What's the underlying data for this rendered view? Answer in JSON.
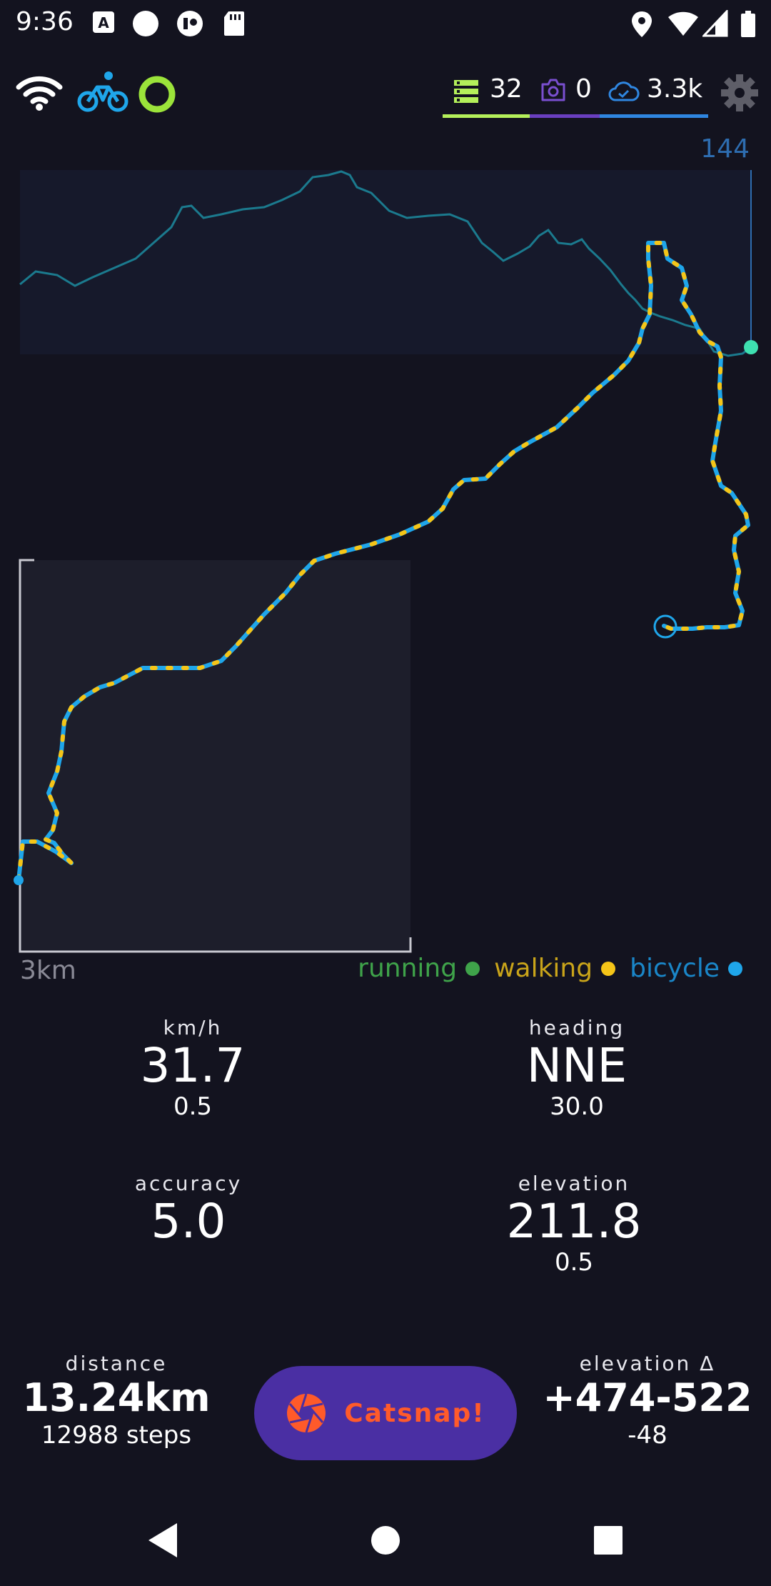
{
  "status_bar": {
    "time": "9:36",
    "icons_left": [
      "accessibility-a-icon",
      "circle-icon",
      "shield-icon",
      "sd-card-icon"
    ],
    "icons_right": [
      "location-icon",
      "wifi-icon",
      "signal-icon",
      "battery-icon"
    ]
  },
  "header": {
    "icons_left": [
      "wifi-icon",
      "bicycle-icon",
      "status-ring-icon"
    ],
    "counters": [
      {
        "icon": "database-stack-icon",
        "value": "32",
        "color": "#b4f05a"
      },
      {
        "icon": "camera-icon",
        "value": "0",
        "color": "#6a3fc0"
      },
      {
        "icon": "cloud-icon",
        "value": "3.3k",
        "color": "#2f86e0"
      }
    ],
    "settings_icon": "gear-icon"
  },
  "chart": {
    "elevation_max_label": "144",
    "scale_label": "3km",
    "legend": [
      {
        "label": "running",
        "color": "#3fa34a"
      },
      {
        "label": "walking",
        "color": "#f5c518"
      },
      {
        "label": "bicycle",
        "color": "#1fa6ea"
      }
    ]
  },
  "stats": {
    "speed": {
      "label": "km/h",
      "value": "31.7",
      "sub": "0.5"
    },
    "heading": {
      "label": "heading",
      "value": "NNE",
      "sub": "30.0"
    },
    "accuracy": {
      "label": "accuracy",
      "value": "5.0",
      "sub": ""
    },
    "elevation": {
      "label": "elevation",
      "value": "211.8",
      "sub": "0.5"
    },
    "distance": {
      "label": "distance",
      "value": "13.24km",
      "sub": "12988 steps"
    },
    "elevation_delta": {
      "label": "elevation Δ",
      "value": "+474-522",
      "sub": "-48"
    }
  },
  "catsnap": {
    "label": "Catsnap!",
    "icon": "camera-aperture-icon"
  },
  "nav": {
    "back": "back-triangle-icon",
    "home": "home-circle-icon",
    "recents": "recents-square-icon"
  }
}
